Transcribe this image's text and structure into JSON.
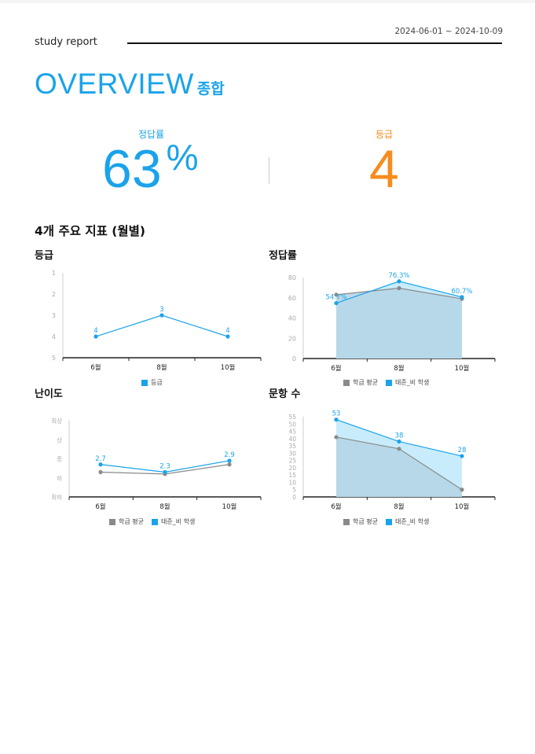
{
  "header": {
    "title": "study report",
    "date_range": "2024-06-01 ~ 2024-10-09"
  },
  "overview": {
    "title_en": "OVERVIEW",
    "title_ko": "종합"
  },
  "kpis": {
    "rate_label": "정답률",
    "rate_value": "63",
    "rate_unit": "%",
    "grade_label": "등급",
    "grade_value": "4"
  },
  "section_title": "4개 주요 지표 (월별)",
  "colors": {
    "accent": "#1aa3ea",
    "orange": "#f78c1e",
    "class_avg": "#8a8a8a"
  },
  "chart_data": [
    {
      "id": "grade",
      "type": "line",
      "title": "등급",
      "categories": [
        "6월",
        "8월",
        "10월"
      ],
      "y_ticks": [
        "1",
        "2",
        "3",
        "4",
        "5"
      ],
      "ylim": [
        1,
        5
      ],
      "y_inverted": true,
      "series": [
        {
          "name": "등급",
          "values": [
            4,
            3,
            4
          ],
          "labels": [
            "4",
            "3",
            "4"
          ]
        }
      ]
    },
    {
      "id": "rate",
      "type": "area",
      "title": "정답률",
      "categories": [
        "6월",
        "8월",
        "10월"
      ],
      "y_ticks": [
        "0",
        "20",
        "40",
        "60",
        "80"
      ],
      "ylim": [
        0,
        80
      ],
      "series": [
        {
          "name": "학급 평균",
          "values": [
            63,
            69.5,
            59
          ]
        },
        {
          "name": "태준_비 학생",
          "values": [
            54.7,
            76.3,
            60.7
          ],
          "labels": [
            "54.7%",
            "76.3%",
            "60.7%"
          ]
        }
      ]
    },
    {
      "id": "difficulty",
      "type": "line",
      "title": "난이도",
      "categories": [
        "6월",
        "8월",
        "10월"
      ],
      "y_ticks": [
        "최하",
        "하",
        "중",
        "상",
        "최상"
      ],
      "ylim": [
        1,
        5
      ],
      "series": [
        {
          "name": "학급 평균",
          "values": [
            2.3,
            2.2,
            2.7
          ]
        },
        {
          "name": "태준_비 학생",
          "values": [
            2.7,
            2.3,
            2.9
          ],
          "labels": [
            "2.7",
            "2.3",
            "2.9"
          ]
        }
      ]
    },
    {
      "id": "count",
      "type": "area",
      "title": "문항 수",
      "categories": [
        "6월",
        "8월",
        "10월"
      ],
      "y_ticks": [
        "0",
        "5",
        "10",
        "15",
        "20",
        "25",
        "30",
        "35",
        "40",
        "45",
        "50",
        "55"
      ],
      "ylim": [
        0,
        55
      ],
      "series": [
        {
          "name": "학급 평균",
          "values": [
            41,
            33,
            5
          ]
        },
        {
          "name": "태준_비 학생",
          "values": [
            53,
            38,
            28
          ],
          "labels": [
            "53",
            "38",
            "28"
          ]
        }
      ]
    }
  ]
}
